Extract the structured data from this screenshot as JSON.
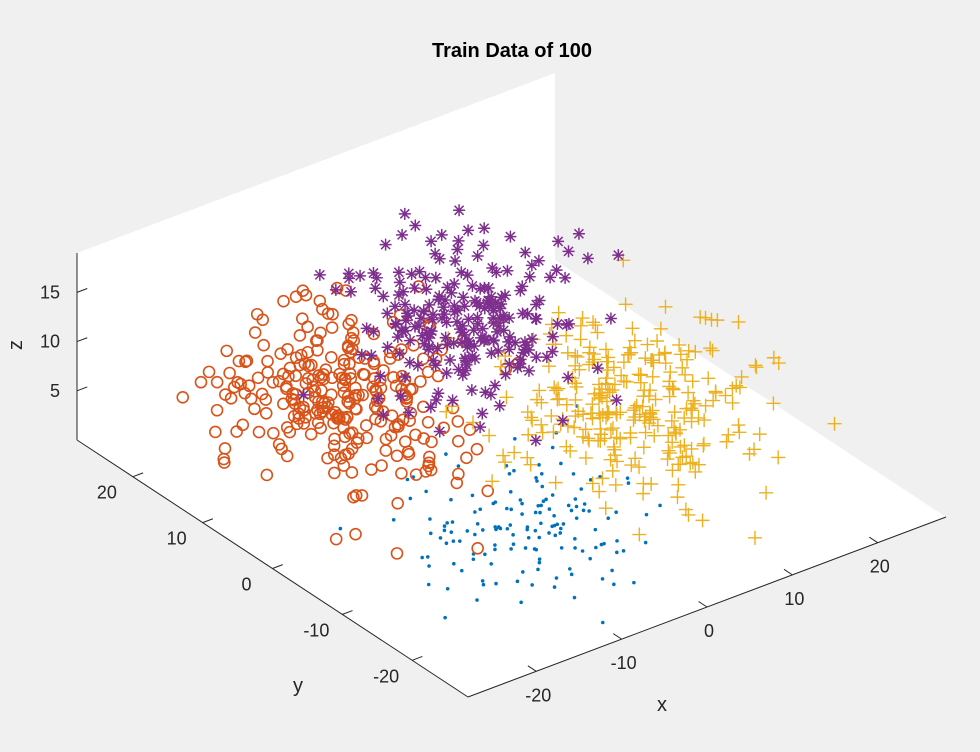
{
  "chart_data": {
    "type": "scatter3d",
    "title": "Train Data of 100",
    "xlabel": "x",
    "ylabel": "y",
    "zlabel": "z",
    "xlim": [
      -28,
      28
    ],
    "ylim": [
      -28,
      28
    ],
    "zlim": [
      0,
      19
    ],
    "x_ticks": [
      {
        "value": -20,
        "label": "-20"
      },
      {
        "value": -10,
        "label": "-10"
      },
      {
        "value": 0,
        "label": "0"
      },
      {
        "value": 10,
        "label": "10"
      },
      {
        "value": 20,
        "label": "20"
      }
    ],
    "y_ticks": [
      {
        "value": -20,
        "label": "-20"
      },
      {
        "value": -10,
        "label": "-10"
      },
      {
        "value": 0,
        "label": "0"
      },
      {
        "value": 10,
        "label": "10"
      },
      {
        "value": 20,
        "label": "20"
      }
    ],
    "z_ticks": [
      {
        "value": 5,
        "label": "5"
      },
      {
        "value": 10,
        "label": "10"
      },
      {
        "value": 15,
        "label": "15"
      }
    ],
    "grid": false,
    "series": [
      {
        "marker": "dot",
        "color": "#0072BD",
        "cluster": {
          "x": -8,
          "y": -12,
          "z": 3,
          "sx": 6,
          "sy": 5,
          "sz": 2.5,
          "n": 150
        }
      },
      {
        "marker": "circle",
        "color": "#D95319",
        "cluster": {
          "x": -14,
          "y": 8,
          "z": 9,
          "sx": 5.5,
          "sy": 6,
          "sz": 3.5,
          "n": 280
        }
      },
      {
        "marker": "plus",
        "color": "#EDB120",
        "cluster": {
          "x": 10,
          "y": -4,
          "z": 6,
          "sx": 6,
          "sy": 7,
          "sz": 3,
          "n": 280
        }
      },
      {
        "marker": "asterisk",
        "color": "#7E2F8E",
        "cluster": {
          "x": 0,
          "y": 6,
          "z": 13,
          "sx": 5,
          "sy": 5,
          "sz": 3,
          "n": 230
        }
      }
    ]
  }
}
